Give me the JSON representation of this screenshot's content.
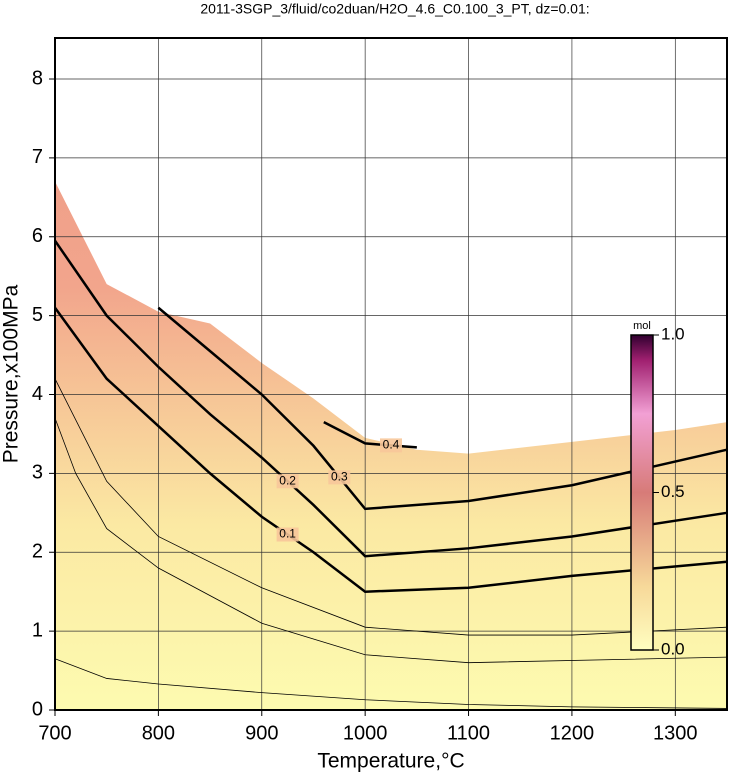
{
  "chart_data": {
    "type": "contour",
    "title": "2011-3SGP_3/fluid/co2duan/H2O_4.6_C0.100_3_PT, dz=0.01:",
    "x_label": "Temperature,°C",
    "y_label": "Pressure,x100MPa",
    "xlim": [
      700,
      1350
    ],
    "ylim": [
      0,
      8.52
    ],
    "xticks": [
      700,
      800,
      900,
      1000,
      1100,
      1200,
      1300
    ],
    "yticks": [
      0,
      1,
      2,
      3,
      4,
      5,
      6,
      7,
      8
    ],
    "grid": true,
    "region": {
      "x": [
        700,
        750,
        800,
        850,
        900,
        950,
        1000,
        1050,
        1100,
        1200,
        1300,
        1350
      ],
      "y": [
        6.7,
        5.4,
        5.05,
        4.9,
        4.4,
        3.95,
        3.45,
        3.3,
        3.25,
        3.4,
        3.55,
        3.65
      ]
    },
    "series": [
      {
        "label": "0.1",
        "color": "#000000",
        "line_width": 2.5,
        "x": [
          700,
          750,
          800,
          850,
          900,
          950,
          1000,
          1100,
          1200,
          1350
        ],
        "values": [
          5.1,
          4.2,
          3.6,
          3.0,
          2.45,
          2.0,
          1.5,
          1.55,
          1.7,
          1.88
        ]
      },
      {
        "label": "0.2",
        "color": "#000000",
        "line_width": 2.5,
        "x": [
          700,
          750,
          800,
          850,
          900,
          950,
          1000,
          1100,
          1200,
          1350
        ],
        "values": [
          5.95,
          5.0,
          4.35,
          3.75,
          3.2,
          2.6,
          1.95,
          2.05,
          2.2,
          2.5
        ]
      },
      {
        "label": "0.3",
        "color": "#000000",
        "line_width": 2.5,
        "x": [
          800,
          850,
          900,
          950,
          1000,
          1100,
          1200,
          1350
        ],
        "values": [
          5.1,
          4.55,
          4.0,
          3.35,
          2.55,
          2.65,
          2.85,
          3.3
        ]
      },
      {
        "label": "0.4",
        "color": "#000000",
        "line_width": 2.5,
        "x": [
          960,
          1000,
          1050
        ],
        "values": [
          3.65,
          3.38,
          3.33
        ]
      },
      {
        "color": "#000000",
        "line_width": 0.8,
        "x": [
          700,
          750,
          800,
          900,
          1000,
          1100,
          1200,
          1350
        ],
        "values": [
          4.2,
          2.9,
          2.2,
          1.55,
          1.05,
          0.95,
          0.95,
          1.05
        ]
      },
      {
        "color": "#000000",
        "line_width": 0.8,
        "x": [
          700,
          720,
          750,
          800,
          900,
          1000,
          1100,
          1350
        ],
        "values": [
          3.7,
          3.0,
          2.3,
          1.8,
          1.1,
          0.7,
          0.6,
          0.67
        ]
      },
      {
        "color": "#000000",
        "line_width": 0.8,
        "x": [
          700,
          750,
          800,
          900,
          1000,
          1100,
          1200,
          1350
        ],
        "values": [
          0.65,
          0.4,
          0.33,
          0.22,
          0.13,
          0.07,
          0.04,
          0.02
        ]
      }
    ],
    "colorbar": {
      "label": "mol",
      "lim": [
        0,
        1
      ],
      "ticks": [
        {
          "value": 0,
          "label": "0.0"
        },
        {
          "value": 0.5,
          "label": "0.5"
        },
        {
          "value": 1,
          "label": "1.0"
        }
      ]
    }
  }
}
